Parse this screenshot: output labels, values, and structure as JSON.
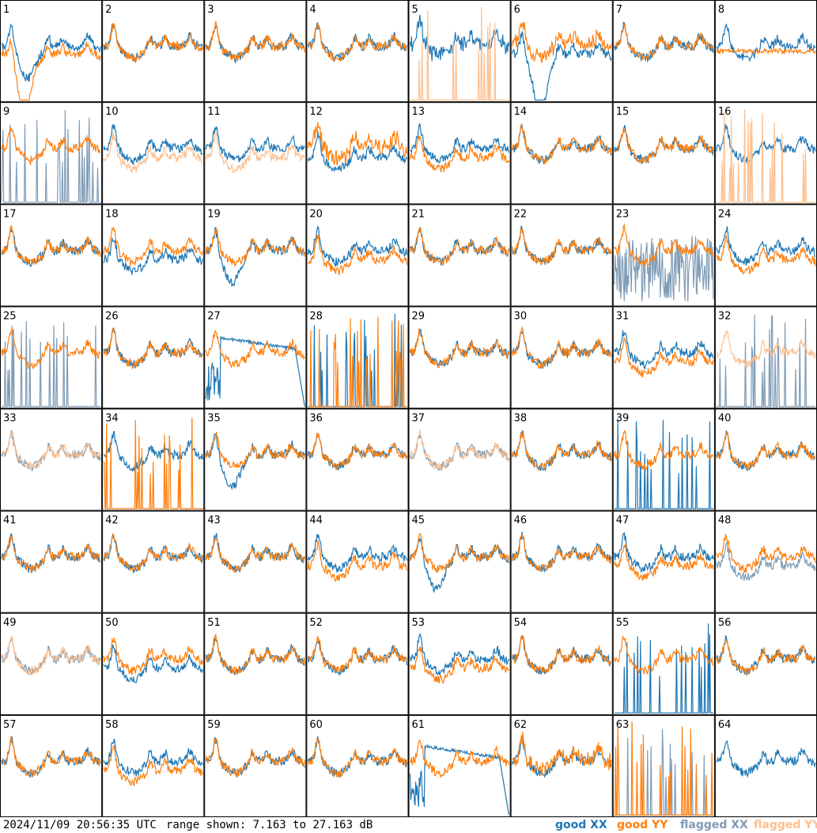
{
  "footer": {
    "timestamp": "2024/11/09 20:56:35 UTC",
    "range_text": "range shown: 7.163 to 27.163 dB"
  },
  "legend": [
    {
      "label": "good XX",
      "color": "#1f77b4"
    },
    {
      "label": "good YY",
      "color": "#ff7f0e"
    },
    {
      "label": "flagged XX",
      "color": "#7f9cb6"
    },
    {
      "label": "flagged YY",
      "color": "#fdbf8f"
    }
  ],
  "chart_data": {
    "type": "line",
    "layout": "8x8 small multiples",
    "ylim_db": [
      7.163,
      27.163
    ],
    "panels": [
      {
        "id": "1",
        "xx": "good",
        "yy": "good",
        "xx_shape": "dip_early",
        "yy_shape": "dip_deep"
      },
      {
        "id": "2",
        "xx": "good",
        "yy": "good",
        "xx_shape": "normal",
        "yy_shape": "normal"
      },
      {
        "id": "3",
        "xx": "good",
        "yy": "good",
        "xx_shape": "normal",
        "yy_shape": "normal"
      },
      {
        "id": "4",
        "xx": "good",
        "yy": "good",
        "xx_shape": "normal",
        "yy_shape": "normal"
      },
      {
        "id": "5",
        "xx": "good",
        "yy": "flagged",
        "xx_shape": "high_noisy",
        "yy_shape": "spikes"
      },
      {
        "id": "6",
        "xx": "good",
        "yy": "good",
        "xx_shape": "deep_dip",
        "yy_shape": "high_noisy"
      },
      {
        "id": "7",
        "xx": "good",
        "yy": "good",
        "xx_shape": "normal",
        "yy_shape": "normal"
      },
      {
        "id": "8",
        "xx": "good",
        "yy": "good",
        "xx_shape": "normal",
        "yy_shape": "flat_mid"
      },
      {
        "id": "9",
        "xx": "flagged",
        "yy": "good",
        "xx_shape": "spikes",
        "yy_shape": "normal"
      },
      {
        "id": "10",
        "xx": "good",
        "yy": "flagged",
        "xx_shape": "normal",
        "yy_shape": "lower"
      },
      {
        "id": "11",
        "xx": "good",
        "yy": "flagged",
        "xx_shape": "normal",
        "yy_shape": "lower"
      },
      {
        "id": "12",
        "xx": "good",
        "yy": "good",
        "xx_shape": "lower",
        "yy_shape": "high_noisy"
      },
      {
        "id": "13",
        "xx": "good",
        "yy": "good",
        "xx_shape": "normal",
        "yy_shape": "lower"
      },
      {
        "id": "14",
        "xx": "good",
        "yy": "good",
        "xx_shape": "normal",
        "yy_shape": "normal"
      },
      {
        "id": "15",
        "xx": "good",
        "yy": "good",
        "xx_shape": "normal",
        "yy_shape": "normal"
      },
      {
        "id": "16",
        "xx": "good",
        "yy": "flagged",
        "xx_shape": "normal",
        "yy_shape": "spikes"
      },
      {
        "id": "17",
        "xx": "good",
        "yy": "good",
        "xx_shape": "normal",
        "yy_shape": "normal"
      },
      {
        "id": "18",
        "xx": "good",
        "yy": "good",
        "xx_shape": "lower",
        "yy_shape": "normal"
      },
      {
        "id": "19",
        "xx": "good",
        "yy": "good",
        "xx_shape": "dip_early",
        "yy_shape": "normal"
      },
      {
        "id": "20",
        "xx": "good",
        "yy": "good",
        "xx_shape": "normal",
        "yy_shape": "lower"
      },
      {
        "id": "21",
        "xx": "good",
        "yy": "good",
        "xx_shape": "normal",
        "yy_shape": "normal"
      },
      {
        "id": "22",
        "xx": "good",
        "yy": "good",
        "xx_shape": "normal",
        "yy_shape": "normal"
      },
      {
        "id": "23",
        "xx": "flagged",
        "yy": "good",
        "xx_shape": "chaotic",
        "yy_shape": "normal"
      },
      {
        "id": "24",
        "xx": "good",
        "yy": "good",
        "xx_shape": "normal",
        "yy_shape": "lower"
      },
      {
        "id": "25",
        "xx": "flagged",
        "yy": "good",
        "xx_shape": "spikes",
        "yy_shape": "normal"
      },
      {
        "id": "26",
        "xx": "good",
        "yy": "good",
        "xx_shape": "normal",
        "yy_shape": "normal"
      },
      {
        "id": "27",
        "xx": "good",
        "yy": "good",
        "xx_shape": "broken",
        "yy_shape": "normal"
      },
      {
        "id": "28",
        "xx": "good",
        "yy": "good",
        "xx_shape": "spikes",
        "yy_shape": "spikes"
      },
      {
        "id": "29",
        "xx": "good",
        "yy": "good",
        "xx_shape": "normal",
        "yy_shape": "normal"
      },
      {
        "id": "30",
        "xx": "good",
        "yy": "good",
        "xx_shape": "normal",
        "yy_shape": "normal"
      },
      {
        "id": "31",
        "xx": "good",
        "yy": "good",
        "xx_shape": "normal",
        "yy_shape": "lower"
      },
      {
        "id": "32",
        "xx": "flagged",
        "yy": "flagged",
        "xx_shape": "spikes",
        "yy_shape": "normal"
      },
      {
        "id": "33",
        "xx": "flagged",
        "yy": "flagged",
        "xx_shape": "normal",
        "yy_shape": "normal"
      },
      {
        "id": "34",
        "xx": "good",
        "yy": "good",
        "xx_shape": "normal",
        "yy_shape": "spikes"
      },
      {
        "id": "35",
        "xx": "good",
        "yy": "good",
        "xx_shape": "dip_early",
        "yy_shape": "normal"
      },
      {
        "id": "36",
        "xx": "good",
        "yy": "good",
        "xx_shape": "normal",
        "yy_shape": "normal"
      },
      {
        "id": "37",
        "xx": "flagged",
        "yy": "flagged",
        "xx_shape": "normal",
        "yy_shape": "normal"
      },
      {
        "id": "38",
        "xx": "good",
        "yy": "good",
        "xx_shape": "normal",
        "yy_shape": "normal"
      },
      {
        "id": "39",
        "xx": "good",
        "yy": "good",
        "xx_shape": "spikes",
        "yy_shape": "normal"
      },
      {
        "id": "40",
        "xx": "good",
        "yy": "good",
        "xx_shape": "normal",
        "yy_shape": "normal"
      },
      {
        "id": "41",
        "xx": "good",
        "yy": "good",
        "xx_shape": "normal",
        "yy_shape": "normal"
      },
      {
        "id": "42",
        "xx": "good",
        "yy": "good",
        "xx_shape": "normal",
        "yy_shape": "normal"
      },
      {
        "id": "43",
        "xx": "good",
        "yy": "good",
        "xx_shape": "normal",
        "yy_shape": "normal"
      },
      {
        "id": "44",
        "xx": "good",
        "yy": "good",
        "xx_shape": "normal",
        "yy_shape": "lower"
      },
      {
        "id": "45",
        "xx": "good",
        "yy": "good",
        "xx_shape": "dip_early",
        "yy_shape": "normal"
      },
      {
        "id": "46",
        "xx": "good",
        "yy": "good",
        "xx_shape": "normal",
        "yy_shape": "normal"
      },
      {
        "id": "47",
        "xx": "good",
        "yy": "good",
        "xx_shape": "normal",
        "yy_shape": "lower"
      },
      {
        "id": "48",
        "xx": "flagged",
        "yy": "good",
        "xx_shape": "lower",
        "yy_shape": "normal"
      },
      {
        "id": "49",
        "xx": "flagged",
        "yy": "flagged",
        "xx_shape": "normal",
        "yy_shape": "normal"
      },
      {
        "id": "50",
        "xx": "good",
        "yy": "good",
        "xx_shape": "lower",
        "yy_shape": "normal"
      },
      {
        "id": "51",
        "xx": "good",
        "yy": "good",
        "xx_shape": "normal",
        "yy_shape": "normal"
      },
      {
        "id": "52",
        "xx": "good",
        "yy": "good",
        "xx_shape": "normal",
        "yy_shape": "normal"
      },
      {
        "id": "53",
        "xx": "good",
        "yy": "good",
        "xx_shape": "normal",
        "yy_shape": "lower"
      },
      {
        "id": "54",
        "xx": "good",
        "yy": "good",
        "xx_shape": "normal",
        "yy_shape": "normal"
      },
      {
        "id": "55",
        "xx": "good",
        "yy": "good",
        "xx_shape": "spikes",
        "yy_shape": "normal"
      },
      {
        "id": "56",
        "xx": "good",
        "yy": "good",
        "xx_shape": "normal",
        "yy_shape": "normal"
      },
      {
        "id": "57",
        "xx": "good",
        "yy": "good",
        "xx_shape": "normal",
        "yy_shape": "normal"
      },
      {
        "id": "58",
        "xx": "good",
        "yy": "good",
        "xx_shape": "normal",
        "yy_shape": "lower"
      },
      {
        "id": "59",
        "xx": "good",
        "yy": "good",
        "xx_shape": "normal",
        "yy_shape": "normal"
      },
      {
        "id": "60",
        "xx": "good",
        "yy": "good",
        "xx_shape": "normal",
        "yy_shape": "normal"
      },
      {
        "id": "61",
        "xx": "good",
        "yy": "good",
        "xx_shape": "broken",
        "yy_shape": "normal"
      },
      {
        "id": "62",
        "xx": "good",
        "yy": "good",
        "xx_shape": "normal",
        "yy_shape": "high_noisy"
      },
      {
        "id": "63",
        "xx": "flagged",
        "yy": "good",
        "xx_shape": "spikes",
        "yy_shape": "spikes"
      },
      {
        "id": "64",
        "xx": "good",
        "yy": "flagged",
        "xx_shape": "normal",
        "yy_shape": "empty"
      }
    ]
  }
}
